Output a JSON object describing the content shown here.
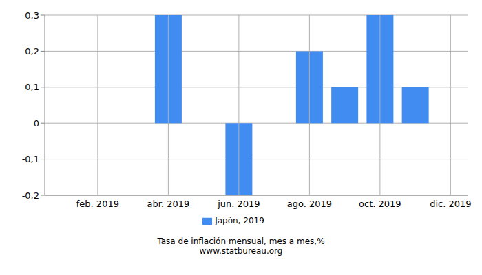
{
  "chart_data": {
    "type": "bar",
    "xlabel": "Tasa de inflación mensual, mes a mes,%",
    "annotations": [
      "www.statbureau.org"
    ],
    "categories": [
      null,
      "feb. 2019",
      null,
      "abr. 2019",
      null,
      "jun. 2019",
      null,
      "ago. 2019",
      null,
      "oct. 2019",
      null,
      "dic. 2019"
    ],
    "series": [
      {
        "name": "Japón, 2019",
        "color": "#418cf0",
        "values": [
          0,
          0,
          0,
          0.3,
          0,
          -0.2,
          0,
          0.2,
          0.1,
          0.3,
          0.1,
          0
        ]
      }
    ],
    "ylim": [
      -0.2,
      0.3
    ],
    "yticks": [
      {
        "value": -0.2,
        "label": "-0,2"
      },
      {
        "value": -0.1,
        "label": "-0,1"
      },
      0,
      {
        "value": 0.1,
        "label": "0,1"
      },
      {
        "value": 0.2,
        "label": "0,2"
      },
      {
        "value": 0.3,
        "label": "0,3"
      }
    ],
    "grid": true,
    "legend": "bottom"
  }
}
